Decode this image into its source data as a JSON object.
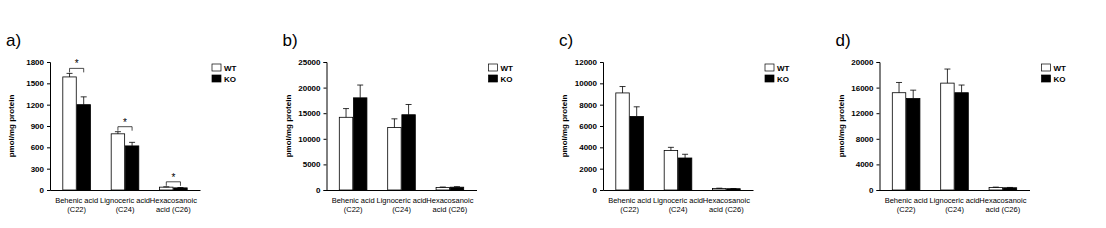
{
  "chart_data": [
    {
      "type": "bar",
      "title": "a)",
      "y_label": "pmol/mg protein",
      "categories": [
        "Behenic acid\n(C22)",
        "Lignoceric acid\n(C24)",
        "Hexacosanoic\nacid (C26)"
      ],
      "series": [
        {
          "name": "WT",
          "color": "#ffffff",
          "values": [
            1590,
            790,
            40
          ],
          "errors": [
            50,
            30,
            5
          ]
        },
        {
          "name": "KO",
          "color": "#000000",
          "values": [
            1200,
            620,
            30
          ],
          "errors": [
            110,
            50,
            5
          ]
        }
      ],
      "ylim": [
        0,
        1800
      ],
      "yticks": [
        0,
        300,
        600,
        900,
        1200,
        1500,
        1800
      ],
      "grid": false,
      "legend": "right",
      "annotations": [
        {
          "text": "*",
          "category": "Behenic acid\n(C22)"
        },
        {
          "text": "*",
          "category": "Lignoceric acid\n(C24)"
        },
        {
          "text": "*",
          "category": "Hexacosanoic\nacid (C26)"
        }
      ]
    },
    {
      "type": "bar",
      "title": "b)",
      "y_label": "pmol/mg protein",
      "categories": [
        "Behenic acid\n(C22)",
        "Lignoceric acid\n(C24)",
        "Hexacosanoic\nacid (C26)"
      ],
      "series": [
        {
          "name": "WT",
          "color": "#ffffff",
          "values": [
            14200,
            12200,
            500
          ],
          "errors": [
            1700,
            1700,
            80
          ]
        },
        {
          "name": "KO",
          "color": "#000000",
          "values": [
            18000,
            14700,
            550
          ],
          "errors": [
            2500,
            2000,
            100
          ]
        }
      ],
      "ylim": [
        0,
        25000
      ],
      "yticks": [
        0,
        5000,
        10000,
        15000,
        20000,
        25000
      ],
      "grid": false,
      "legend": "right"
    },
    {
      "type": "bar",
      "title": "c)",
      "y_label": "pmol/mg protein",
      "categories": [
        "Behenic acid\n(C22)",
        "Lignoceric acid\n(C24)",
        "Hexacosanoic\nacid (C26)"
      ],
      "series": [
        {
          "name": "WT",
          "color": "#ffffff",
          "values": [
            9100,
            3700,
            150
          ],
          "errors": [
            600,
            300,
            20
          ]
        },
        {
          "name": "KO",
          "color": "#000000",
          "values": [
            6900,
            3000,
            120
          ],
          "errors": [
            900,
            350,
            20
          ]
        }
      ],
      "ylim": [
        0,
        12000
      ],
      "yticks": [
        0,
        2000,
        4000,
        6000,
        8000,
        10000,
        12000
      ],
      "grid": false,
      "legend": "right"
    },
    {
      "type": "bar",
      "title": "d)",
      "y_label": "pmol/mg protein",
      "categories": [
        "Behenic acid\n(C22)",
        "Lignoceric acid\n(C24)",
        "Hexacosanoic\nacid (C26)"
      ],
      "series": [
        {
          "name": "WT",
          "color": "#ffffff",
          "values": [
            15200,
            16700,
            400
          ],
          "errors": [
            1600,
            2200,
            50
          ]
        },
        {
          "name": "KO",
          "color": "#000000",
          "values": [
            14300,
            15200,
            350
          ],
          "errors": [
            1300,
            1200,
            50
          ]
        }
      ],
      "ylim": [
        0,
        20000
      ],
      "yticks": [
        0,
        4000,
        8000,
        12000,
        16000,
        20000
      ],
      "grid": false,
      "legend": "right"
    }
  ]
}
